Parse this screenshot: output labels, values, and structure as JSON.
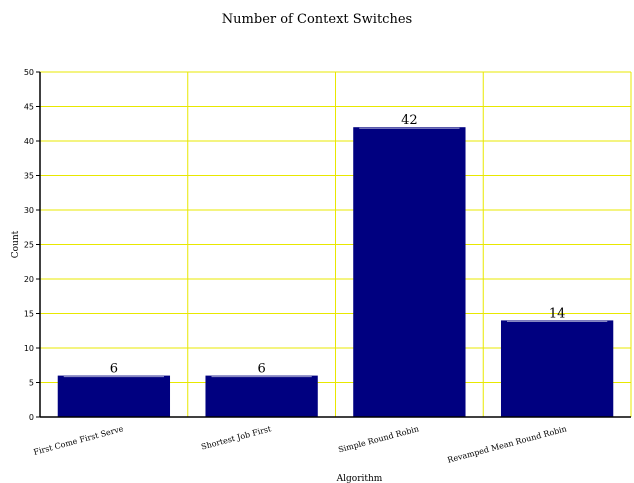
{
  "chart_data": {
    "type": "bar",
    "title": "Number of Context Switches",
    "xlabel": "Algorithm",
    "ylabel": "Count",
    "categories": [
      "First Come First Serve",
      "Shortest Job First",
      "Simple Round Robin",
      "Revamped Mean Round Robin"
    ],
    "values": [
      6,
      6,
      42,
      14
    ],
    "ylim": [
      0,
      50
    ],
    "yticks": [
      0,
      5,
      10,
      15,
      20,
      25,
      30,
      35,
      40,
      45,
      50
    ],
    "grid": true,
    "legend": "none",
    "colors": {
      "bar": "#000080",
      "grid": "#e8e800",
      "axis": "#000000"
    }
  }
}
